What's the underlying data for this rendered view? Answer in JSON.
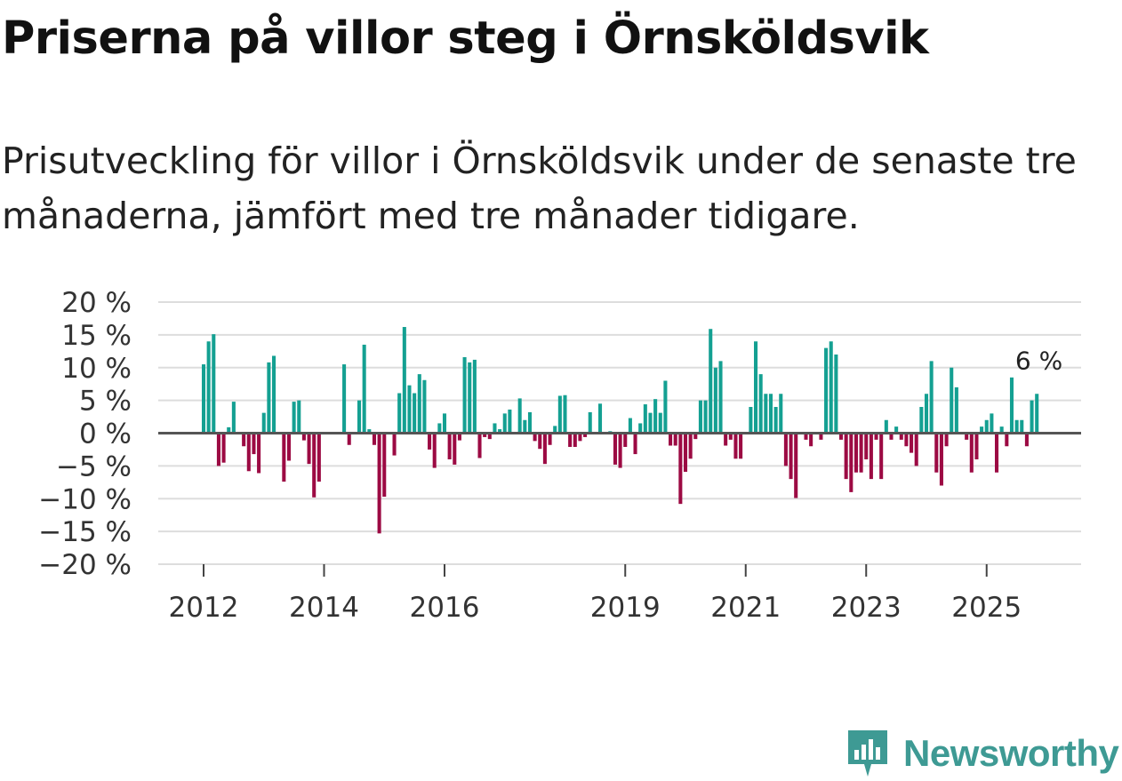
{
  "header": {
    "title": "Priserna på villor steg i Örnsköldsvik",
    "subtitle": "Prisutveckling för villor i Örnsköldsvik under de senaste tre månaderna, jämfört med tre månader tidigare."
  },
  "brand": {
    "name": "Newsworthy",
    "color": "#3e9a94",
    "icon": "bar-chart-icon"
  },
  "colors": {
    "positive": "#14a092",
    "negative": "#9c0a43",
    "grid": "#dddddd",
    "zero": "#555555"
  },
  "chart_data": {
    "type": "bar",
    "title": "Priserna på villor steg i Örnsköldsvik",
    "xlabel": "",
    "ylabel": "",
    "ylim": [
      -20,
      20
    ],
    "yticks": [
      20,
      15,
      10,
      5,
      0,
      -5,
      -10,
      -15,
      -20
    ],
    "ytick_labels": [
      "20 %",
      "15 %",
      "10 %",
      "5 %",
      "0 %",
      "−5 %",
      "−10 %",
      "−15 %",
      "−20 %"
    ],
    "xticks": [
      2012,
      2014,
      2016,
      2019,
      2021,
      2023,
      2025
    ],
    "xtick_labels": [
      "2012",
      "2014",
      "2016",
      "2019",
      "2021",
      "2023",
      "2025"
    ],
    "x_start": 2012.0,
    "x_step_months": 1,
    "annotation": {
      "text": "6 %",
      "x": 2025.75,
      "value": 6
    },
    "values": [
      10.5,
      14,
      15.1,
      -5,
      -4.5,
      0.9,
      4.8,
      0,
      -2,
      -5.8,
      -3.2,
      -6.1,
      3.1,
      10.8,
      11.8,
      0,
      -7.4,
      -4.2,
      4.8,
      5,
      -1.1,
      -4.7,
      -9.8,
      -7.4,
      0,
      0,
      0,
      0,
      10.5,
      -1.8,
      0,
      5,
      13.5,
      0.6,
      -1.8,
      -15.3,
      -9.7,
      0,
      -3.4,
      6.1,
      16.2,
      7.3,
      6.1,
      9,
      8.1,
      -2.5,
      -5.3,
      1.5,
      3,
      -4,
      -4.8,
      -1.1,
      11.6,
      10.8,
      11.2,
      -3.8,
      -0.6,
      -0.9,
      1.5,
      0.6,
      3,
      3.6,
      0,
      5.3,
      2,
      3.2,
      -1.2,
      -2.4,
      -4.7,
      -1.8,
      1.1,
      5.7,
      5.8,
      -2.1,
      -2.1,
      -1.2,
      -0.6,
      3.2,
      0,
      4.5,
      0,
      0.3,
      -4.8,
      -5.3,
      -2.1,
      2.3,
      -3.2,
      1.5,
      4.4,
      3.1,
      5.2,
      3.1,
      8,
      -1.9,
      -1.9,
      -10.8,
      -5.9,
      -3.9,
      -0.9,
      5,
      5,
      15.9,
      10,
      11,
      -1.9,
      -1,
      -3.9,
      -3.9,
      0,
      4,
      14,
      9,
      6,
      6,
      4,
      6,
      -5,
      -7,
      -9.9,
      0,
      -1,
      -2,
      0,
      -1,
      13,
      14,
      12,
      -1,
      -7,
      -9,
      -6,
      -6,
      -4,
      -7,
      -1,
      -7,
      2,
      -1,
      1,
      -1,
      -2,
      -3,
      -5,
      4,
      6,
      11,
      -6,
      -8,
      -2,
      10,
      7,
      0,
      -1,
      -6,
      -4,
      1,
      2,
      3,
      -6,
      1,
      -2,
      8.5,
      2,
      2,
      -2,
      5,
      6
    ]
  }
}
